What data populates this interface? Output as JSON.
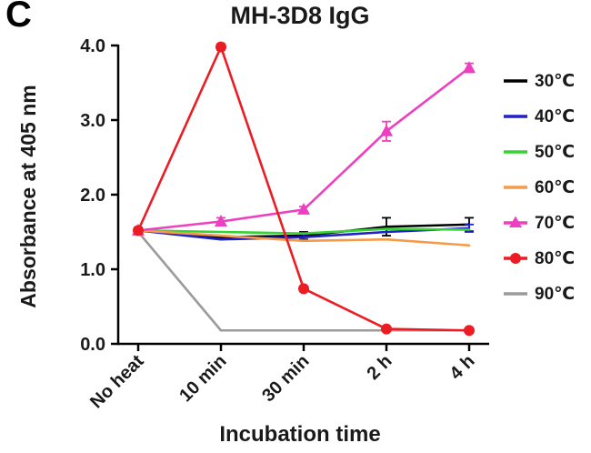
{
  "panel_label": "C",
  "chart_data": {
    "type": "line",
    "title": "MH-3D8 IgG",
    "xlabel": "Incubation time",
    "ylabel": "Absorbance at 405 nm",
    "categories": [
      "No heat",
      "10 min",
      "30 min",
      "2 h",
      "4 h"
    ],
    "ylim": [
      0.0,
      4.0
    ],
    "yticks": [
      0.0,
      1.0,
      2.0,
      3.0,
      4.0
    ],
    "ytick_labels": [
      "0.0",
      "1.0",
      "2.0",
      "3.0",
      "4.0"
    ],
    "grid": false,
    "legend_position": "right",
    "series": [
      {
        "name": "30℃",
        "color": "#000000",
        "marker": "none",
        "zorder": 1,
        "values": [
          1.52,
          1.43,
          1.45,
          1.57,
          1.6
        ],
        "errors": [
          0,
          0,
          0.05,
          0.12,
          0.09
        ]
      },
      {
        "name": "40℃",
        "color": "#2121c8",
        "marker": "none",
        "zorder": 2,
        "values": [
          1.52,
          1.4,
          1.43,
          1.5,
          1.55
        ],
        "errors": [
          0,
          0,
          0.04,
          0,
          0.05
        ]
      },
      {
        "name": "50℃",
        "color": "#35d435",
        "marker": "none",
        "zorder": 3,
        "values": [
          1.52,
          1.5,
          1.48,
          1.54,
          1.53
        ],
        "errors": [
          0,
          0,
          0,
          0,
          0
        ]
      },
      {
        "name": "60℃",
        "color": "#f59a49",
        "marker": "none",
        "zorder": 4,
        "values": [
          1.52,
          1.45,
          1.38,
          1.4,
          1.32
        ],
        "errors": [
          0,
          0,
          0,
          0,
          0
        ]
      },
      {
        "name": "70℃",
        "color": "#ee3fc1",
        "marker": "triangle",
        "zorder": 6,
        "values": [
          1.52,
          1.64,
          1.8,
          2.85,
          3.7
        ],
        "errors": [
          0,
          0.05,
          0.04,
          0.13,
          0.06
        ]
      },
      {
        "name": "80℃",
        "color": "#ec1c24",
        "marker": "circle",
        "zorder": 7,
        "values": [
          1.52,
          3.98,
          0.74,
          0.2,
          0.18
        ],
        "errors": [
          0.04,
          0.04,
          0,
          0,
          0
        ]
      },
      {
        "name": "90℃",
        "color": "#9b9b9b",
        "marker": "none",
        "zorder": 5,
        "values": [
          1.5,
          0.18,
          0.18,
          0.18,
          0.18
        ],
        "errors": [
          0,
          0,
          0,
          0,
          0
        ]
      }
    ]
  }
}
